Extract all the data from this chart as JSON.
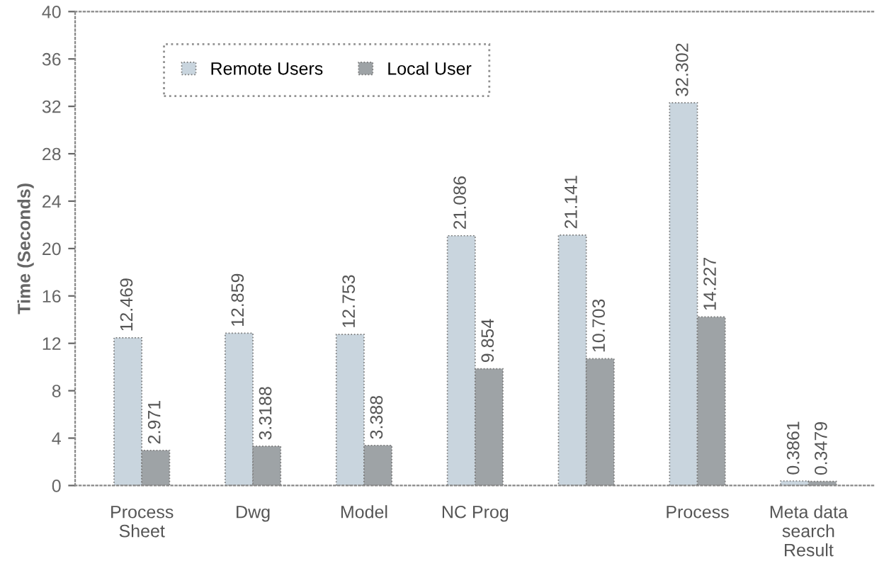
{
  "chart_data": {
    "type": "bar",
    "ylabel": "Time (Seconds)",
    "categories": [
      "Process\nSheet",
      "Dwg",
      "Model",
      "NC Prog",
      null,
      "Process",
      "Meta data\nsearch\nResult"
    ],
    "series": [
      {
        "name": "Remote Users",
        "color": "#c9d5de",
        "values": [
          12.469,
          12.859,
          12.753,
          21.086,
          21.141,
          32.302,
          0.3861
        ]
      },
      {
        "name": "Local User",
        "color": "#9ea3a6",
        "values": [
          2.971,
          3.3188,
          3.388,
          9.854,
          10.703,
          14.227,
          0.3479
        ]
      }
    ],
    "ylim": [
      0,
      40
    ],
    "yticks": [
      0,
      4,
      8,
      12,
      16,
      20,
      24,
      28,
      32,
      36,
      40
    ],
    "data_labels": true,
    "legend": "top left",
    "grid": false
  }
}
